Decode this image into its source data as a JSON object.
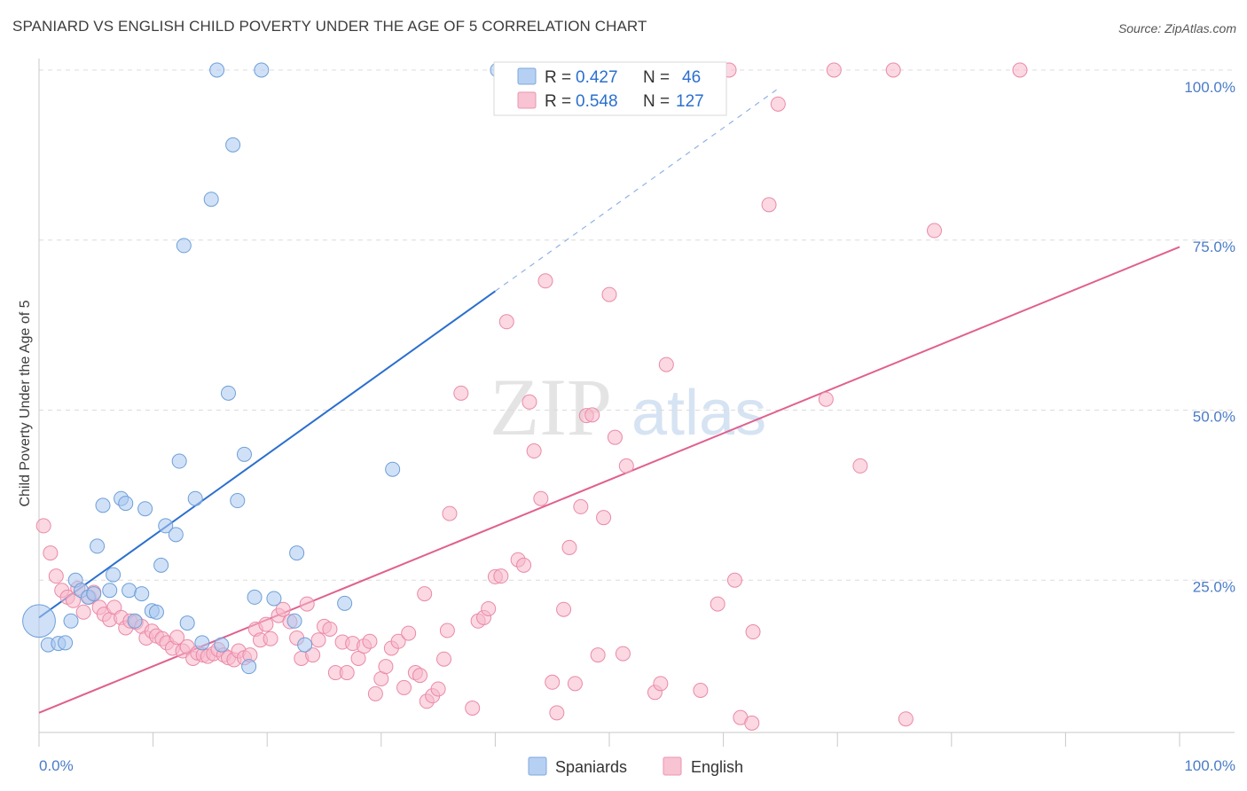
{
  "title": "SPANIARD VS ENGLISH CHILD POVERTY UNDER THE AGE OF 5 CORRELATION CHART",
  "source": "Source: ZipAtlas.com",
  "watermark": {
    "zip": "ZIP",
    "atlas": "atlas"
  },
  "stats_legend": [
    {
      "r_label": "R =",
      "r_value": "0.427",
      "n_label": "N =",
      "n_value": "46"
    },
    {
      "r_label": "R =",
      "r_value": "0.548",
      "n_label": "N =",
      "n_value": "127"
    }
  ],
  "colors": {
    "spaniards_fill": "#a9c8f0",
    "spaniards_stroke": "#6e9fd8",
    "spaniards_line": "#2b6fcf",
    "english_fill": "#f7b8cb",
    "english_stroke": "#ea8aa8",
    "english_line": "#e0608e",
    "axis_value": "#4a7cc7",
    "grid": "#dcdcdc"
  },
  "chart_data": {
    "type": "scatter",
    "title": "SPANIARD VS ENGLISH CHILD POVERTY UNDER THE AGE OF 5 CORRELATION CHART",
    "xlabel": "",
    "ylabel": "Child Poverty Under the Age of 5",
    "xlim": [
      0,
      100
    ],
    "ylim": [
      0,
      100
    ],
    "x_tick_labels": [
      "0.0%",
      "100.0%"
    ],
    "y_tick_labels": [
      "25.0%",
      "50.0%",
      "75.0%",
      "100.0%"
    ],
    "y_tick_values": [
      25,
      50,
      75,
      100
    ],
    "grid": true,
    "legend_position": "bottom-center",
    "series": [
      {
        "name": "Spaniards",
        "trendline": {
          "x0": 0,
          "y0": 19.5,
          "x1": 40,
          "y1": 67.5,
          "dashed_to_x": 65
        },
        "points": [
          [
            0,
            19,
            2.3
          ],
          [
            0.8,
            15.5,
            1
          ],
          [
            1.7,
            15.7,
            1
          ],
          [
            2.3,
            15.8,
            1
          ],
          [
            2.8,
            19,
            1
          ],
          [
            3.2,
            25,
            1
          ],
          [
            3.7,
            23.5,
            1
          ],
          [
            4.3,
            22.5,
            1
          ],
          [
            4.8,
            23,
            1
          ],
          [
            5.1,
            30,
            1
          ],
          [
            5.6,
            36,
            1
          ],
          [
            6.2,
            23.5,
            1
          ],
          [
            6.5,
            25.8,
            1
          ],
          [
            7.2,
            37,
            1
          ],
          [
            7.6,
            36.3,
            1
          ],
          [
            7.9,
            23.5,
            1
          ],
          [
            8.4,
            19,
            1
          ],
          [
            9.0,
            23,
            1
          ],
          [
            9.3,
            35.5,
            1
          ],
          [
            9.9,
            20.5,
            1
          ],
          [
            10.3,
            20.3,
            1
          ],
          [
            10.7,
            27.2,
            1
          ],
          [
            11.1,
            33,
            1
          ],
          [
            12.0,
            31.7,
            1
          ],
          [
            12.3,
            42.5,
            1
          ],
          [
            12.7,
            74.2,
            1
          ],
          [
            13.7,
            37,
            1
          ],
          [
            14.3,
            15.8,
            1
          ],
          [
            15.1,
            81,
            1
          ],
          [
            15.6,
            100,
            1
          ],
          [
            16.0,
            15.5,
            1
          ],
          [
            16.6,
            52.5,
            1
          ],
          [
            17.0,
            89,
            1
          ],
          [
            17.4,
            36.7,
            1
          ],
          [
            18.0,
            43.5,
            1
          ],
          [
            18.4,
            12.3,
            1
          ],
          [
            18.9,
            22.5,
            1
          ],
          [
            19.5,
            100,
            1
          ],
          [
            20.6,
            22.3,
            1
          ],
          [
            22.4,
            19,
            1
          ],
          [
            22.6,
            29,
            1
          ],
          [
            23.3,
            15.5,
            1
          ],
          [
            26.8,
            21.6,
            1
          ],
          [
            31.0,
            41.3,
            1
          ],
          [
            40.2,
            100,
            1
          ],
          [
            13.0,
            18.7,
            1
          ]
        ]
      },
      {
        "name": "English",
        "trendline": {
          "x0": 0,
          "y0": 5.5,
          "x1": 100,
          "y1": 74
        },
        "points": [
          [
            0.4,
            33,
            1
          ],
          [
            1.0,
            29,
            1
          ],
          [
            1.5,
            25.6,
            1
          ],
          [
            2.0,
            23.5,
            1
          ],
          [
            2.5,
            22.5,
            1
          ],
          [
            3.0,
            22,
            1
          ],
          [
            3.4,
            23.8,
            1
          ],
          [
            3.9,
            20.3,
            1
          ],
          [
            4.4,
            22.5,
            1
          ],
          [
            4.8,
            23.2,
            1
          ],
          [
            5.3,
            21,
            1
          ],
          [
            5.7,
            20,
            1
          ],
          [
            6.2,
            19.2,
            1
          ],
          [
            6.6,
            21,
            1
          ],
          [
            7.2,
            19.5,
            1
          ],
          [
            7.6,
            18,
            1
          ],
          [
            8.0,
            19,
            1
          ],
          [
            8.5,
            18.8,
            1
          ],
          [
            9.0,
            18.2,
            1
          ],
          [
            9.4,
            16.5,
            1
          ],
          [
            9.9,
            17.5,
            1
          ],
          [
            10.3,
            16.8,
            1
          ],
          [
            10.8,
            16.4,
            1
          ],
          [
            11.2,
            15.8,
            1
          ],
          [
            11.7,
            15,
            1
          ],
          [
            12.1,
            16.6,
            1
          ],
          [
            12.6,
            14.6,
            1
          ],
          [
            13.0,
            15.2,
            1
          ],
          [
            13.5,
            13.5,
            1
          ],
          [
            13.9,
            14.3,
            1
          ],
          [
            14.4,
            14,
            1
          ],
          [
            14.8,
            13.8,
            1
          ],
          [
            15.3,
            14.2,
            1
          ],
          [
            15.7,
            14.8,
            1
          ],
          [
            16.2,
            14,
            1
          ],
          [
            16.6,
            13.6,
            1
          ],
          [
            17.1,
            13.3,
            1
          ],
          [
            17.5,
            14.6,
            1
          ],
          [
            18.0,
            13.6,
            1
          ],
          [
            18.5,
            14,
            1
          ],
          [
            19.0,
            17.8,
            1
          ],
          [
            19.4,
            16.2,
            1
          ],
          [
            19.9,
            18.5,
            1
          ],
          [
            20.3,
            16.4,
            1
          ],
          [
            21.0,
            19.8,
            1
          ],
          [
            21.4,
            20.7,
            1
          ],
          [
            22.0,
            18.9,
            1
          ],
          [
            22.6,
            16.5,
            1
          ],
          [
            23.0,
            13.5,
            1
          ],
          [
            23.5,
            21.5,
            1
          ],
          [
            24.0,
            14,
            1
          ],
          [
            24.5,
            16.2,
            1
          ],
          [
            25.0,
            18.2,
            1
          ],
          [
            25.5,
            17.8,
            1
          ],
          [
            26.0,
            11.4,
            1
          ],
          [
            26.6,
            15.9,
            1
          ],
          [
            27.0,
            11.4,
            1
          ],
          [
            27.5,
            15.7,
            1
          ],
          [
            28.0,
            13.5,
            1
          ],
          [
            28.5,
            15.3,
            1
          ],
          [
            29.0,
            16,
            1
          ],
          [
            29.5,
            8.3,
            1
          ],
          [
            30.0,
            10.5,
            1
          ],
          [
            30.4,
            12.3,
            1
          ],
          [
            30.9,
            15,
            1
          ],
          [
            31.5,
            16,
            1
          ],
          [
            32.0,
            9.2,
            1
          ],
          [
            32.4,
            17.2,
            1
          ],
          [
            33.0,
            11.4,
            1
          ],
          [
            33.4,
            11,
            1
          ],
          [
            33.8,
            23,
            1
          ],
          [
            34.0,
            7.2,
            1
          ],
          [
            34.5,
            8,
            1
          ],
          [
            35.0,
            9,
            1
          ],
          [
            35.5,
            13.4,
            1
          ],
          [
            35.8,
            17.6,
            1
          ],
          [
            36.0,
            34.8,
            1
          ],
          [
            37.0,
            52.5,
            1
          ],
          [
            38.0,
            6.2,
            1
          ],
          [
            38.5,
            19,
            1
          ],
          [
            39.0,
            19.5,
            1
          ],
          [
            39.4,
            20.8,
            1
          ],
          [
            40.0,
            25.5,
            1
          ],
          [
            40.5,
            25.6,
            1
          ],
          [
            41.0,
            63,
            1
          ],
          [
            42.0,
            28,
            1
          ],
          [
            42.5,
            27.2,
            1
          ],
          [
            43.0,
            51.2,
            1
          ],
          [
            43.4,
            44,
            1
          ],
          [
            44.0,
            37,
            1
          ],
          [
            44.4,
            69,
            1
          ],
          [
            45.0,
            10,
            1
          ],
          [
            45.4,
            5.5,
            1
          ],
          [
            46.0,
            20.7,
            1
          ],
          [
            46.5,
            29.8,
            1
          ],
          [
            47.0,
            9.8,
            1
          ],
          [
            47.5,
            35.8,
            1
          ],
          [
            48.0,
            49.2,
            1
          ],
          [
            48.5,
            49.3,
            1
          ],
          [
            49.0,
            14,
            1
          ],
          [
            49.5,
            34.2,
            1
          ],
          [
            50.0,
            67,
            1
          ],
          [
            50.5,
            46,
            1
          ],
          [
            51.2,
            14.2,
            1
          ],
          [
            51.5,
            41.8,
            1
          ],
          [
            53.0,
            100,
            1
          ],
          [
            54.0,
            8.5,
            1
          ],
          [
            54.5,
            9.8,
            1
          ],
          [
            55.0,
            56.7,
            1
          ],
          [
            57.0,
            100,
            1
          ],
          [
            58.0,
            8.8,
            1
          ],
          [
            59.0,
            100,
            1
          ],
          [
            59.5,
            21.5,
            1
          ],
          [
            60.5,
            100,
            1
          ],
          [
            61.0,
            25,
            1
          ],
          [
            61.5,
            4.8,
            1
          ],
          [
            62.5,
            4,
            1
          ],
          [
            62.6,
            17.4,
            1
          ],
          [
            64.0,
            80.2,
            1
          ],
          [
            64.8,
            95,
            1
          ],
          [
            69.0,
            51.6,
            1
          ],
          [
            69.7,
            100,
            1
          ],
          [
            72.0,
            41.8,
            1
          ],
          [
            74.9,
            100,
            1
          ],
          [
            76.0,
            4.6,
            1
          ],
          [
            78.5,
            76.4,
            1
          ],
          [
            86.0,
            100,
            1
          ]
        ]
      }
    ]
  },
  "legend": {
    "spaniards": "Spaniards",
    "english": "English"
  }
}
